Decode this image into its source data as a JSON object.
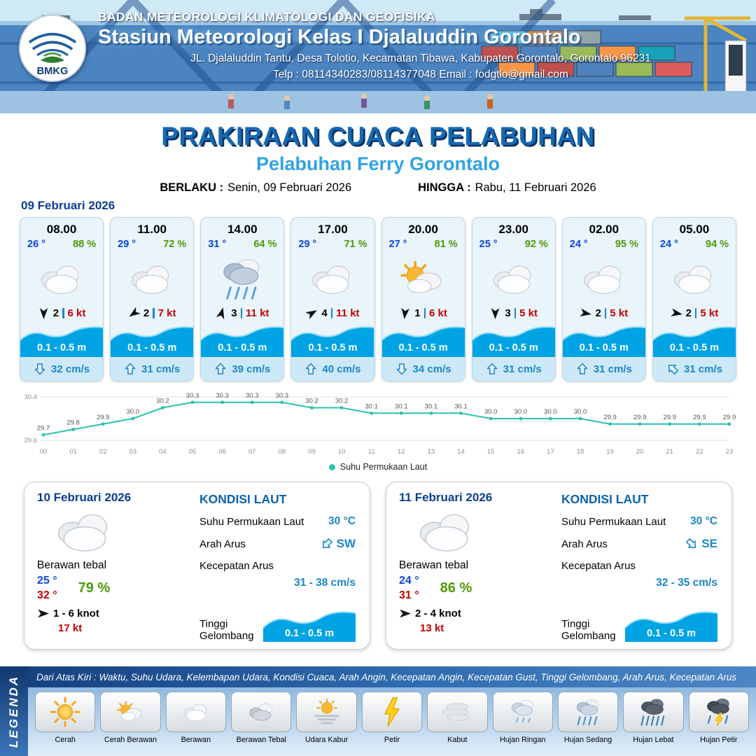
{
  "header": {
    "agency": "BADAN METEOROLOGI KLIMATOLOGI DAN GEOFISIKA",
    "station": "Stasiun Meteorologi Kelas I Djalaluddin Gorontalo",
    "address": "JL. Djalaluddin Tantu, Desa Tolotio, Kecamatan Tibawa, Kabupaten Gorontalo, Gorontalo 96231",
    "contact": "Telp : 08114340283/08114377048 Email : fodgtlo@gmail.com",
    "logo_text": "BMKG"
  },
  "title": {
    "main": "PRAKIRAAN CUACA PELABUHAN",
    "subtitle": "Pelabuhan Ferry Gorontalo",
    "berlaku_label": "BERLAKU :",
    "berlaku_value": "Senin, 09 Februari 2026",
    "hingga_label": "HINGGA :",
    "hingga_value": "Rabu, 11 Februari 2026"
  },
  "forecast": {
    "date": "09 Februari 2026",
    "cards": [
      {
        "time": "08.00",
        "temp": "26 °",
        "humidity": "88 %",
        "icon": "cloud-icon",
        "wind_deg": 180,
        "wind_force": "2",
        "wind_speed": "6 kt",
        "wave": "0.1 - 0.5 m",
        "current_deg": 180,
        "current": "32 cm/s"
      },
      {
        "time": "11.00",
        "temp": "29 °",
        "humidity": "72 %",
        "icon": "cloud-icon",
        "wind_deg": 235,
        "wind_force": "2",
        "wind_speed": "7 kt",
        "wave": "0.1 - 0.5 m",
        "current_deg": 0,
        "current": "31 cm/s"
      },
      {
        "time": "14.00",
        "temp": "31 °",
        "humidity": "64 %",
        "icon": "rain-icon",
        "wind_deg": 15,
        "wind_force": "3",
        "wind_speed": "11 kt",
        "wave": "0.1 - 0.5 m",
        "current_deg": 0,
        "current": "39 cm/s"
      },
      {
        "time": "17.00",
        "temp": "29 °",
        "humidity": "71 %",
        "icon": "cloud-icon",
        "wind_deg": 60,
        "wind_force": "4",
        "wind_speed": "11 kt",
        "wave": "0.1 - 0.5 m",
        "current_deg": 0,
        "current": "40 cm/s"
      },
      {
        "time": "20.00",
        "temp": "27 °",
        "humidity": "81 %",
        "icon": "sun-cloud-icon",
        "wind_deg": 185,
        "wind_force": "1",
        "wind_speed": "6 kt",
        "wave": "0.1 - 0.5 m",
        "current_deg": 180,
        "current": "34 cm/s"
      },
      {
        "time": "23.00",
        "temp": "25 °",
        "humidity": "92 %",
        "icon": "cloud-icon",
        "wind_deg": 180,
        "wind_force": "3",
        "wind_speed": "5 kt",
        "wave": "0.1 - 0.5 m",
        "current_deg": 0,
        "current": "31 cm/s"
      },
      {
        "time": "02.00",
        "temp": "24 °",
        "humidity": "95 %",
        "icon": "cloud-icon",
        "wind_deg": 100,
        "wind_force": "2",
        "wind_speed": "5 kt",
        "wave": "0.1 - 0.5 m",
        "current_deg": 0,
        "current": "31 cm/s"
      },
      {
        "time": "05.00",
        "temp": "24 °",
        "humidity": "94 %",
        "icon": "cloud-icon",
        "wind_deg": 100,
        "wind_force": "2",
        "wind_speed": "5 kt",
        "wave": "0.1 - 0.5 m",
        "current_deg": 315,
        "current": "31 cm/s"
      }
    ]
  },
  "chart_data": {
    "type": "line",
    "title": "Suhu Permukaan Laut",
    "legend": "Suhu Permukaan Laut",
    "x": [
      "00",
      "01",
      "02",
      "03",
      "04",
      "05",
      "06",
      "07",
      "08",
      "09",
      "10",
      "11",
      "12",
      "13",
      "14",
      "15",
      "16",
      "17",
      "18",
      "19",
      "20",
      "21",
      "22",
      "23"
    ],
    "values": [
      29.7,
      29.8,
      29.9,
      30.0,
      30.2,
      30.3,
      30.3,
      30.3,
      30.3,
      30.2,
      30.2,
      30.1,
      30.1,
      30.1,
      30.1,
      30.0,
      30.0,
      30.0,
      30.0,
      29.9,
      29.9,
      29.9,
      29.9,
      29.9
    ],
    "ylim": [
      29.6,
      30.4
    ],
    "ytick_labels": [
      "30.4",
      "29.6"
    ],
    "line_color": "#2cc2b0",
    "grid": true,
    "legend_position": "bottom"
  },
  "kondisi_laut": {
    "title": "KONDISI LAUT",
    "sst_label": "Suhu Permukaan Laut",
    "arah_label": "Arah Arus",
    "kecepatan_label": "Kecepatan Arus",
    "gelombang_label": "Tinggi Gelombang"
  },
  "days": [
    {
      "date": "10 Februari 2026",
      "icon": "cloud-icon",
      "condition": "Berawan tebal",
      "temp_min": "25 °",
      "temp_max": "32 °",
      "humidity": "79 %",
      "wind": "1 - 6 knot",
      "wind_deg": 90,
      "gust": "17 kt",
      "sst": "30 °C",
      "current_dir": "SW",
      "current_deg": 225,
      "current_speed": "31 - 38 cm/s",
      "wave": "0.1 - 0.5 m"
    },
    {
      "date": "11 Februari 2026",
      "icon": "cloud-icon",
      "condition": "Berawan tebal",
      "temp_min": "24 °",
      "temp_max": "31 °",
      "humidity": "86 %",
      "wind": "2 - 4 knot",
      "wind_deg": 90,
      "gust": "13 kt",
      "sst": "30 °C",
      "current_dir": "SE",
      "current_deg": 135,
      "current_speed": "32 - 35 cm/s",
      "wave": "0.1 - 0.5 m"
    }
  ],
  "legend": {
    "vertical_label": "LEGENDA",
    "description": "Dari Atas Kiri : Waktu, Suhu Udara, Kelembapan Udara, Kondisi Cuaca, Arah Angin, Kecepatan Angin, Kecepatan Gust, Tinggi Gelombang, Arah Arus, Kecepatan Arus",
    "items": [
      {
        "label": "Cerah",
        "icon": "sun-icon"
      },
      {
        "label": "Cerah Berawan",
        "icon": "sun-cloud-icon"
      },
      {
        "label": "Berawan",
        "icon": "cloud-icon"
      },
      {
        "label": "Berawan Tebal",
        "icon": "dark-cloud-icon"
      },
      {
        "label": "Udara Kabur",
        "icon": "haze-icon"
      },
      {
        "label": "Petir",
        "icon": "lightning-icon"
      },
      {
        "label": "Kabut",
        "icon": "fog-icon"
      },
      {
        "label": "Hujan Ringan",
        "icon": "rain-light-icon"
      },
      {
        "label": "Hujan Sedang",
        "icon": "rain-medium-icon"
      },
      {
        "label": "Hujan Lebat",
        "icon": "rain-heavy-icon"
      },
      {
        "label": "Hujan Petir",
        "icon": "rain-thunder-icon"
      }
    ]
  }
}
